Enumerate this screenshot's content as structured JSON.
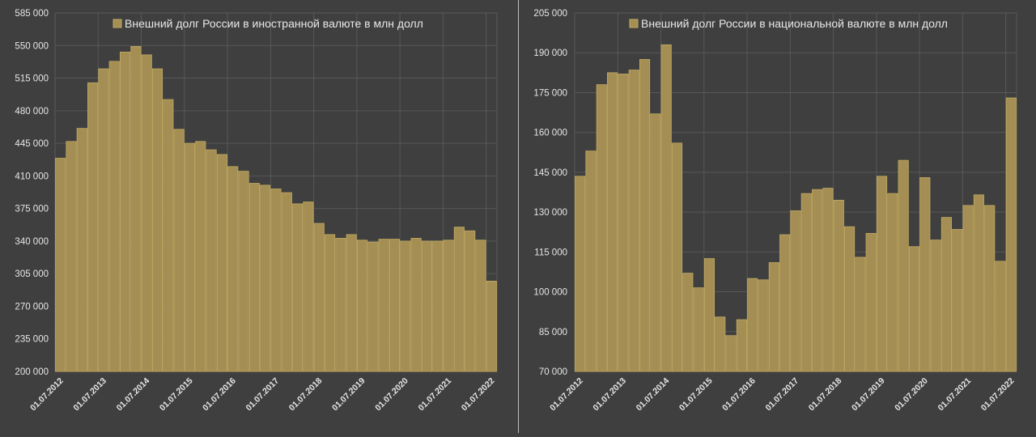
{
  "colors": {
    "background": "#3f3f3f",
    "bar_fill": "#a48e53",
    "bar_edge": "#c2ab63",
    "grid": "#585858",
    "text": "#e6e6e6"
  },
  "chart_data": [
    {
      "type": "bar",
      "series": [
        {
          "name": "Внешний долг России в иностранной валюте в млн долл"
        }
      ],
      "legend_position": "top-center",
      "grid": true,
      "ylim": [
        200000,
        585000
      ],
      "y_ticks": [
        "585 000",
        "550 000",
        "515 000",
        "480 000",
        "445 000",
        "410 000",
        "375 000",
        "340 000",
        "305 000",
        "270 000",
        "235 000",
        "200 000"
      ],
      "x_ticks": [
        "01.07.2012",
        "01.07.2013",
        "01.07.2014",
        "01.07.2015",
        "01.07.2016",
        "01.07.2017",
        "01.07.2018",
        "01.07.2019",
        "01.07.2020",
        "01.07.2021",
        "01.07.2022"
      ],
      "categories": [
        "2012-07",
        "2012-10",
        "2013-01",
        "2013-04",
        "2013-07",
        "2013-10",
        "2014-01",
        "2014-04",
        "2014-07",
        "2014-10",
        "2015-01",
        "2015-04",
        "2015-07",
        "2015-10",
        "2016-01",
        "2016-04",
        "2016-07",
        "2016-10",
        "2017-01",
        "2017-04",
        "2017-07",
        "2017-10",
        "2018-01",
        "2018-04",
        "2018-07",
        "2018-10",
        "2019-01",
        "2019-04",
        "2019-07",
        "2019-10",
        "2020-01",
        "2020-04",
        "2020-07",
        "2020-10",
        "2021-01",
        "2021-04",
        "2021-07",
        "2021-10",
        "2022-01",
        "2022-04",
        "2022-07"
      ],
      "values": [
        429000,
        447000,
        461000,
        510000,
        525000,
        533000,
        543000,
        549000,
        540000,
        525000,
        492000,
        460000,
        445000,
        447000,
        438000,
        433000,
        420000,
        415000,
        402000,
        400000,
        396000,
        392000,
        380000,
        382000,
        359000,
        347000,
        343000,
        347000,
        341000,
        339000,
        342000,
        342000,
        340000,
        343000,
        340000,
        340000,
        341000,
        355000,
        351000,
        341000,
        297000
      ]
    },
    {
      "type": "bar",
      "series": [
        {
          "name": "Внешний долг России в национальной валюте в млн долл"
        }
      ],
      "legend_position": "top-center",
      "grid": true,
      "ylim": [
        70000,
        205000
      ],
      "y_ticks": [
        "205 000",
        "190 000",
        "175 000",
        "160 000",
        "145 000",
        "130 000",
        "115 000",
        "100 000",
        "85 000",
        "70 000"
      ],
      "x_ticks": [
        "01.07.2012",
        "01.07.2013",
        "01.07.2014",
        "01.07.2015",
        "01.07.2016",
        "01.07.2017",
        "01.07.2018",
        "01.07.2019",
        "01.07.2020",
        "01.07.2021",
        "01.07.2022"
      ],
      "categories": [
        "2012-07",
        "2012-10",
        "2013-01",
        "2013-04",
        "2013-07",
        "2013-10",
        "2014-01",
        "2014-04",
        "2014-07",
        "2014-10",
        "2015-01",
        "2015-04",
        "2015-07",
        "2015-10",
        "2016-01",
        "2016-04",
        "2016-07",
        "2016-10",
        "2017-01",
        "2017-04",
        "2017-07",
        "2017-10",
        "2018-01",
        "2018-04",
        "2018-07",
        "2018-10",
        "2019-01",
        "2019-04",
        "2019-07",
        "2019-10",
        "2020-01",
        "2020-04",
        "2020-07",
        "2020-10",
        "2021-01",
        "2021-04",
        "2021-07",
        "2021-10",
        "2022-01",
        "2022-04",
        "2022-07"
      ],
      "values": [
        143500,
        153000,
        178000,
        182500,
        182000,
        183500,
        187500,
        167000,
        193000,
        156000,
        107000,
        101500,
        112500,
        90500,
        83500,
        89500,
        105000,
        104500,
        111000,
        121500,
        130500,
        137000,
        138500,
        139000,
        134500,
        124500,
        113000,
        122000,
        143500,
        137000,
        149500,
        117000,
        143000,
        119500,
        128000,
        123500,
        132500,
        136500,
        132500,
        111500,
        173000
      ]
    }
  ]
}
